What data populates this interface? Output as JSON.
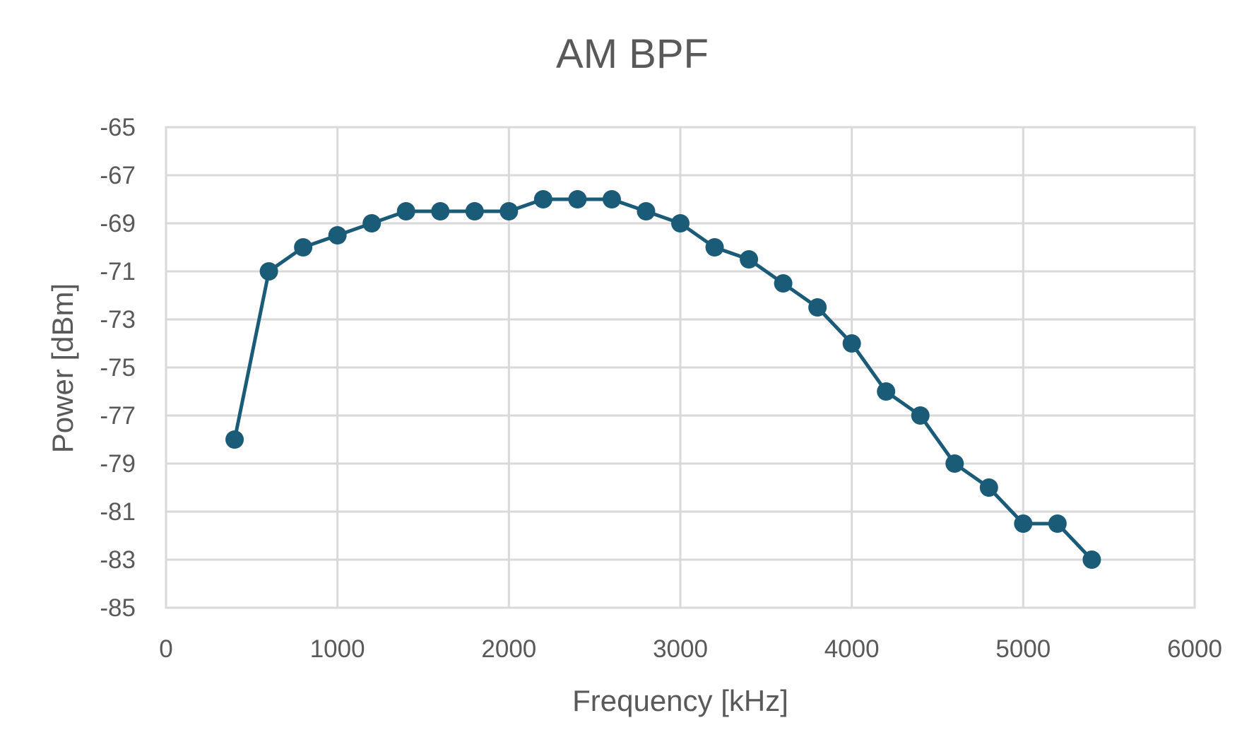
{
  "chart_data": {
    "type": "line",
    "title": "AM BPF",
    "xlabel": "Frequency [kHz]",
    "ylabel": "Power [dBm]",
    "xlim": [
      0,
      6000
    ],
    "ylim": [
      -85,
      -65
    ],
    "xticks": [
      0,
      1000,
      2000,
      3000,
      4000,
      5000,
      6000
    ],
    "yticks": [
      -65,
      -67,
      -69,
      -71,
      -73,
      -75,
      -77,
      -79,
      -81,
      -83,
      -85
    ],
    "grid": true,
    "legend": "none",
    "series": [
      {
        "color": "#1a5b78",
        "marker": "circle",
        "x": [
          400,
          600,
          800,
          1000,
          1200,
          1400,
          1600,
          1800,
          2000,
          2200,
          2400,
          2600,
          2800,
          3000,
          3200,
          3400,
          3600,
          3800,
          4000,
          4200,
          4400,
          4600,
          4800,
          5000,
          5200,
          5400
        ],
        "y": [
          -78,
          -71,
          -70,
          -69.5,
          -69,
          -68.5,
          -68.5,
          -68.5,
          -68.5,
          -68,
          -68,
          -68,
          -68.5,
          -69,
          -70,
          -70.5,
          -71.5,
          -72.5,
          -74,
          -76,
          -77,
          -79,
          -80,
          -81.5,
          -81.5,
          -83
        ]
      }
    ]
  }
}
